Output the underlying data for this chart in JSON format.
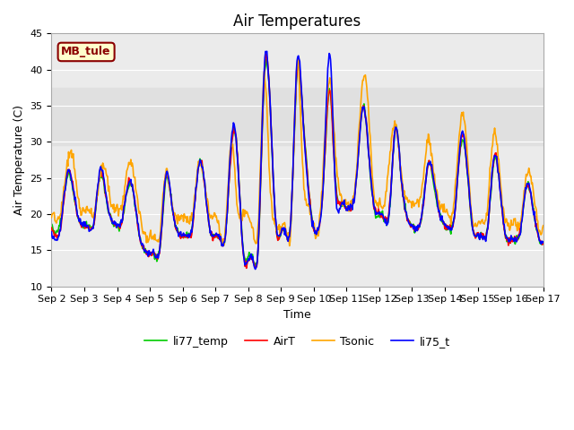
{
  "title": "Air Temperatures",
  "xlabel": "Time",
  "ylabel": "Air Temperature (C)",
  "ylim": [
    10,
    45
  ],
  "xlim_days": [
    0,
    15
  ],
  "x_tick_labels": [
    "Sep 2",
    "Sep 3",
    "Sep 4",
    "Sep 5",
    "Sep 6",
    "Sep 7",
    "Sep 8",
    "Sep 9",
    "Sep 10",
    "Sep 11",
    "Sep 12",
    "Sep 13",
    "Sep 14",
    "Sep 15",
    "Sep 16",
    "Sep 17"
  ],
  "colors": {
    "AirT": "#ff0000",
    "li75_t": "#0000ff",
    "li77_temp": "#00cc00",
    "Tsonic": "#ffa500"
  },
  "legend_labels": [
    "AirT",
    "li75_t",
    "li77_temp",
    "Tsonic"
  ],
  "annotation_text": "MB_tule",
  "annotation_color": "#8b0000",
  "annotation_bg": "#ffffcc",
  "bg_band_color": "#e0e0e0",
  "bg_band_y1": 29.5,
  "bg_band_y2": 37.5,
  "plot_bg": "#ebebeb",
  "line_width": 1.2,
  "title_fontsize": 12,
  "axis_fontsize": 9,
  "tick_fontsize": 8
}
